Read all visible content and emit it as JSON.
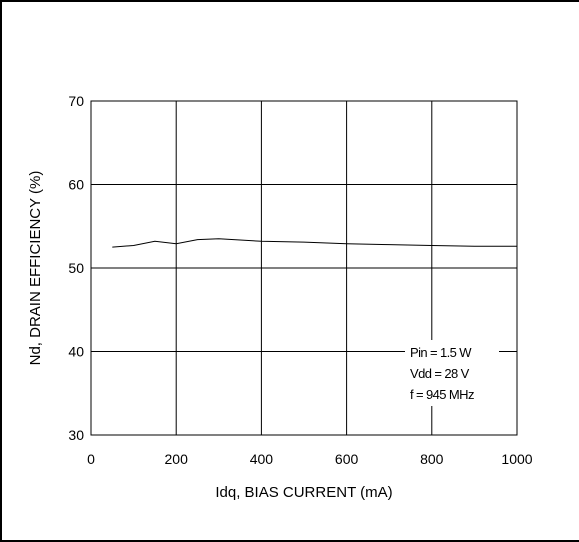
{
  "chart_data": {
    "type": "line",
    "title": "",
    "xlabel": "Idq, BIAS CURRENT  (mA)",
    "ylabel": "Nd, DRAIN EFFICIENCY  (%)",
    "xlim": [
      0,
      1000
    ],
    "ylim": [
      30,
      70
    ],
    "xticks": [
      0,
      200,
      400,
      600,
      800,
      1000
    ],
    "yticks": [
      30,
      40,
      50,
      60,
      70
    ],
    "xtick_labels": [
      "0",
      "200",
      "400",
      "600",
      "800",
      "1000"
    ],
    "ytick_labels": [
      "30",
      "40",
      "50",
      "60",
      "70"
    ],
    "grid": true,
    "series": [
      {
        "x": [
          50,
          100,
          150,
          200,
          250,
          300,
          400,
          500,
          600,
          700,
          800,
          900,
          1000
        ],
        "y": [
          52.5,
          52.7,
          53.2,
          52.9,
          53.4,
          53.5,
          53.2,
          53.1,
          52.9,
          52.8,
          52.7,
          52.6,
          52.6
        ]
      }
    ],
    "annotations": [
      "Pin = 1.5 W",
      "Vdd = 28 V",
      "f = 945 MHz"
    ],
    "colors": {
      "line": "#000000",
      "grid": "#000000",
      "background": "#ffffff"
    }
  }
}
